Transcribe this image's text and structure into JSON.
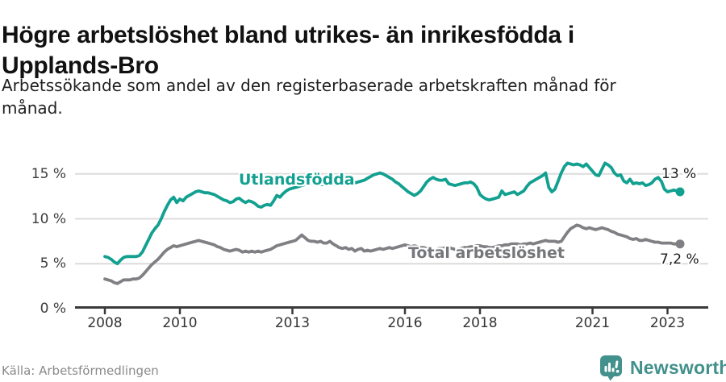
{
  "header": {
    "title": "Högre arbetslöshet bland utrikes- än inrikesfödda i Upplands-Bro",
    "title_lines": [
      "Högre arbetslöshet bland utrikes- än inrikesfödda i",
      "Upplands-Bro"
    ],
    "subtitle": "Arbetssökande som andel av den registerbaserade arbetskraften månad för månad.",
    "subtitle_lines": [
      "Arbetssökande som andel av den registerbaserade arbetskraften månad för",
      "månad."
    ]
  },
  "footer": {
    "source": "Källa: Arbetsförmedlingen",
    "brand": "Newsworthy",
    "brand_icon": "newsworthy-speech-bubble-bar-chart-icon",
    "brand_color": "#42918c"
  },
  "colors": {
    "foreign_born_line": "#12a090",
    "total_line": "#808084",
    "axis": "#3a3a3a",
    "gridline": "#dcdcdc",
    "tick_label": "#3c3c3c",
    "end_label": "#1b1b1b",
    "total_label_text": "#76777b"
  },
  "chart_data": {
    "type": "line",
    "title": "Högre arbetslöshet bland utrikes- än inrikesfödda i Upplands-Bro",
    "unit": "%",
    "x_unit": "month",
    "x_start": "2008-01",
    "x_end": "2023-05",
    "xlim": [
      2007.2,
      2024.1
    ],
    "ylim": [
      0,
      17.5
    ],
    "grid": "horizontal",
    "legend_position": "inline-labels",
    "x_ticks": [
      2008,
      2010,
      2013,
      2016,
      2018,
      2021,
      2023
    ],
    "y_ticks": [
      {
        "value": 0,
        "label": "0 %"
      },
      {
        "value": 5,
        "label": "5 %"
      },
      {
        "value": 10,
        "label": "10 %"
      },
      {
        "value": 15,
        "label": "15 %"
      }
    ],
    "series": [
      {
        "id": "utlandsfodda",
        "name": "Utlandsfödda",
        "color": "#12a090",
        "end_label": "13 %",
        "end_value": 13.0,
        "values": [
          5.8,
          5.7,
          5.5,
          5.2,
          5.0,
          5.4,
          5.7,
          5.8,
          5.8,
          5.8,
          5.8,
          5.9,
          6.3,
          7.0,
          7.7,
          8.4,
          8.9,
          9.3,
          10.0,
          10.8,
          11.5,
          12.1,
          12.4,
          11.8,
          12.2,
          12.0,
          12.4,
          12.6,
          12.8,
          13.0,
          13.1,
          13.0,
          12.9,
          12.9,
          12.8,
          12.7,
          12.5,
          12.3,
          12.1,
          12.0,
          11.8,
          11.9,
          12.2,
          12.3,
          12.0,
          11.8,
          12.0,
          11.9,
          11.7,
          11.4,
          11.3,
          11.5,
          11.6,
          11.5,
          12.0,
          12.6,
          12.4,
          12.8,
          13.1,
          13.3,
          13.4,
          13.5,
          13.6,
          13.7,
          13.8,
          13.9,
          14.0,
          14.0,
          13.9,
          13.8,
          13.8,
          13.9,
          13.9,
          13.8,
          13.9,
          14.0,
          14.1,
          14.0,
          14.1,
          14.2,
          14.0,
          14.1,
          14.2,
          14.3,
          14.5,
          14.7,
          14.9,
          15.0,
          15.1,
          15.0,
          14.8,
          14.6,
          14.4,
          14.1,
          13.9,
          13.6,
          13.3,
          13.0,
          12.8,
          12.6,
          12.8,
          13.1,
          13.6,
          14.1,
          14.4,
          14.6,
          14.4,
          14.3,
          14.3,
          14.4,
          13.9,
          13.8,
          13.7,
          13.8,
          13.9,
          14.0,
          14.0,
          14.1,
          13.9,
          13.5,
          12.7,
          12.4,
          12.2,
          12.1,
          12.2,
          12.3,
          12.4,
          13.1,
          12.7,
          12.8,
          12.9,
          13.0,
          12.7,
          12.9,
          13.1,
          13.6,
          14.0,
          14.2,
          14.4,
          14.6,
          14.8,
          15.1,
          13.5,
          13.0,
          13.3,
          14.2,
          15.1,
          15.8,
          16.2,
          16.1,
          16.0,
          16.1,
          16.0,
          15.8,
          16.1,
          15.7,
          15.3,
          14.9,
          14.8,
          15.5,
          16.2,
          16.0,
          15.7,
          15.1,
          14.8,
          14.9,
          14.2,
          14.0,
          14.4,
          13.9,
          14.0,
          13.9,
          14.0,
          13.7,
          13.8,
          14.0,
          14.4,
          14.6,
          14.2,
          13.3,
          13.0,
          13.1,
          13.2,
          13.1,
          13.0
        ]
      },
      {
        "id": "total",
        "name": "Total arbetslöshet",
        "color": "#808084",
        "end_label": "7,2 %",
        "end_value": 7.2,
        "values": [
          3.3,
          3.2,
          3.1,
          2.9,
          2.8,
          3.0,
          3.2,
          3.2,
          3.2,
          3.3,
          3.3,
          3.4,
          3.7,
          4.1,
          4.5,
          4.9,
          5.2,
          5.5,
          5.9,
          6.3,
          6.6,
          6.8,
          7.0,
          6.9,
          7.0,
          7.1,
          7.2,
          7.3,
          7.4,
          7.5,
          7.6,
          7.5,
          7.4,
          7.3,
          7.2,
          7.1,
          6.9,
          6.8,
          6.6,
          6.5,
          6.4,
          6.5,
          6.6,
          6.5,
          6.3,
          6.4,
          6.3,
          6.4,
          6.3,
          6.4,
          6.3,
          6.4,
          6.5,
          6.6,
          6.8,
          7.0,
          7.1,
          7.2,
          7.3,
          7.4,
          7.5,
          7.6,
          7.9,
          8.2,
          7.9,
          7.6,
          7.5,
          7.5,
          7.4,
          7.5,
          7.3,
          7.3,
          7.5,
          7.2,
          7.0,
          6.8,
          6.7,
          6.8,
          6.6,
          6.7,
          6.4,
          6.6,
          6.7,
          6.4,
          6.5,
          6.4,
          6.5,
          6.6,
          6.7,
          6.6,
          6.7,
          6.8,
          6.7,
          6.8,
          6.9,
          7.0,
          7.1,
          7.0,
          6.9,
          7.0,
          6.9,
          6.8,
          6.8,
          6.7,
          6.7,
          6.6,
          6.6,
          6.7,
          6.7,
          6.8,
          6.8,
          6.7,
          6.6,
          6.6,
          6.7,
          6.8,
          6.8,
          6.9,
          6.9,
          7.0,
          7.0,
          6.9,
          6.9,
          6.8,
          6.8,
          6.9,
          7.0,
          7.0,
          7.1,
          7.1,
          7.2,
          7.2,
          7.2,
          7.1,
          7.2,
          7.2,
          7.3,
          7.2,
          7.3,
          7.4,
          7.5,
          7.6,
          7.5,
          7.5,
          7.5,
          7.4,
          7.5,
          8.0,
          8.5,
          8.9,
          9.1,
          9.3,
          9.2,
          9.0,
          8.9,
          9.0,
          8.9,
          8.8,
          8.9,
          9.0,
          8.9,
          8.8,
          8.6,
          8.5,
          8.3,
          8.2,
          8.1,
          8.0,
          7.8,
          7.7,
          7.8,
          7.6,
          7.6,
          7.7,
          7.6,
          7.5,
          7.4,
          7.4,
          7.3,
          7.3,
          7.3,
          7.3,
          7.2,
          7.2,
          7.2
        ]
      }
    ]
  }
}
